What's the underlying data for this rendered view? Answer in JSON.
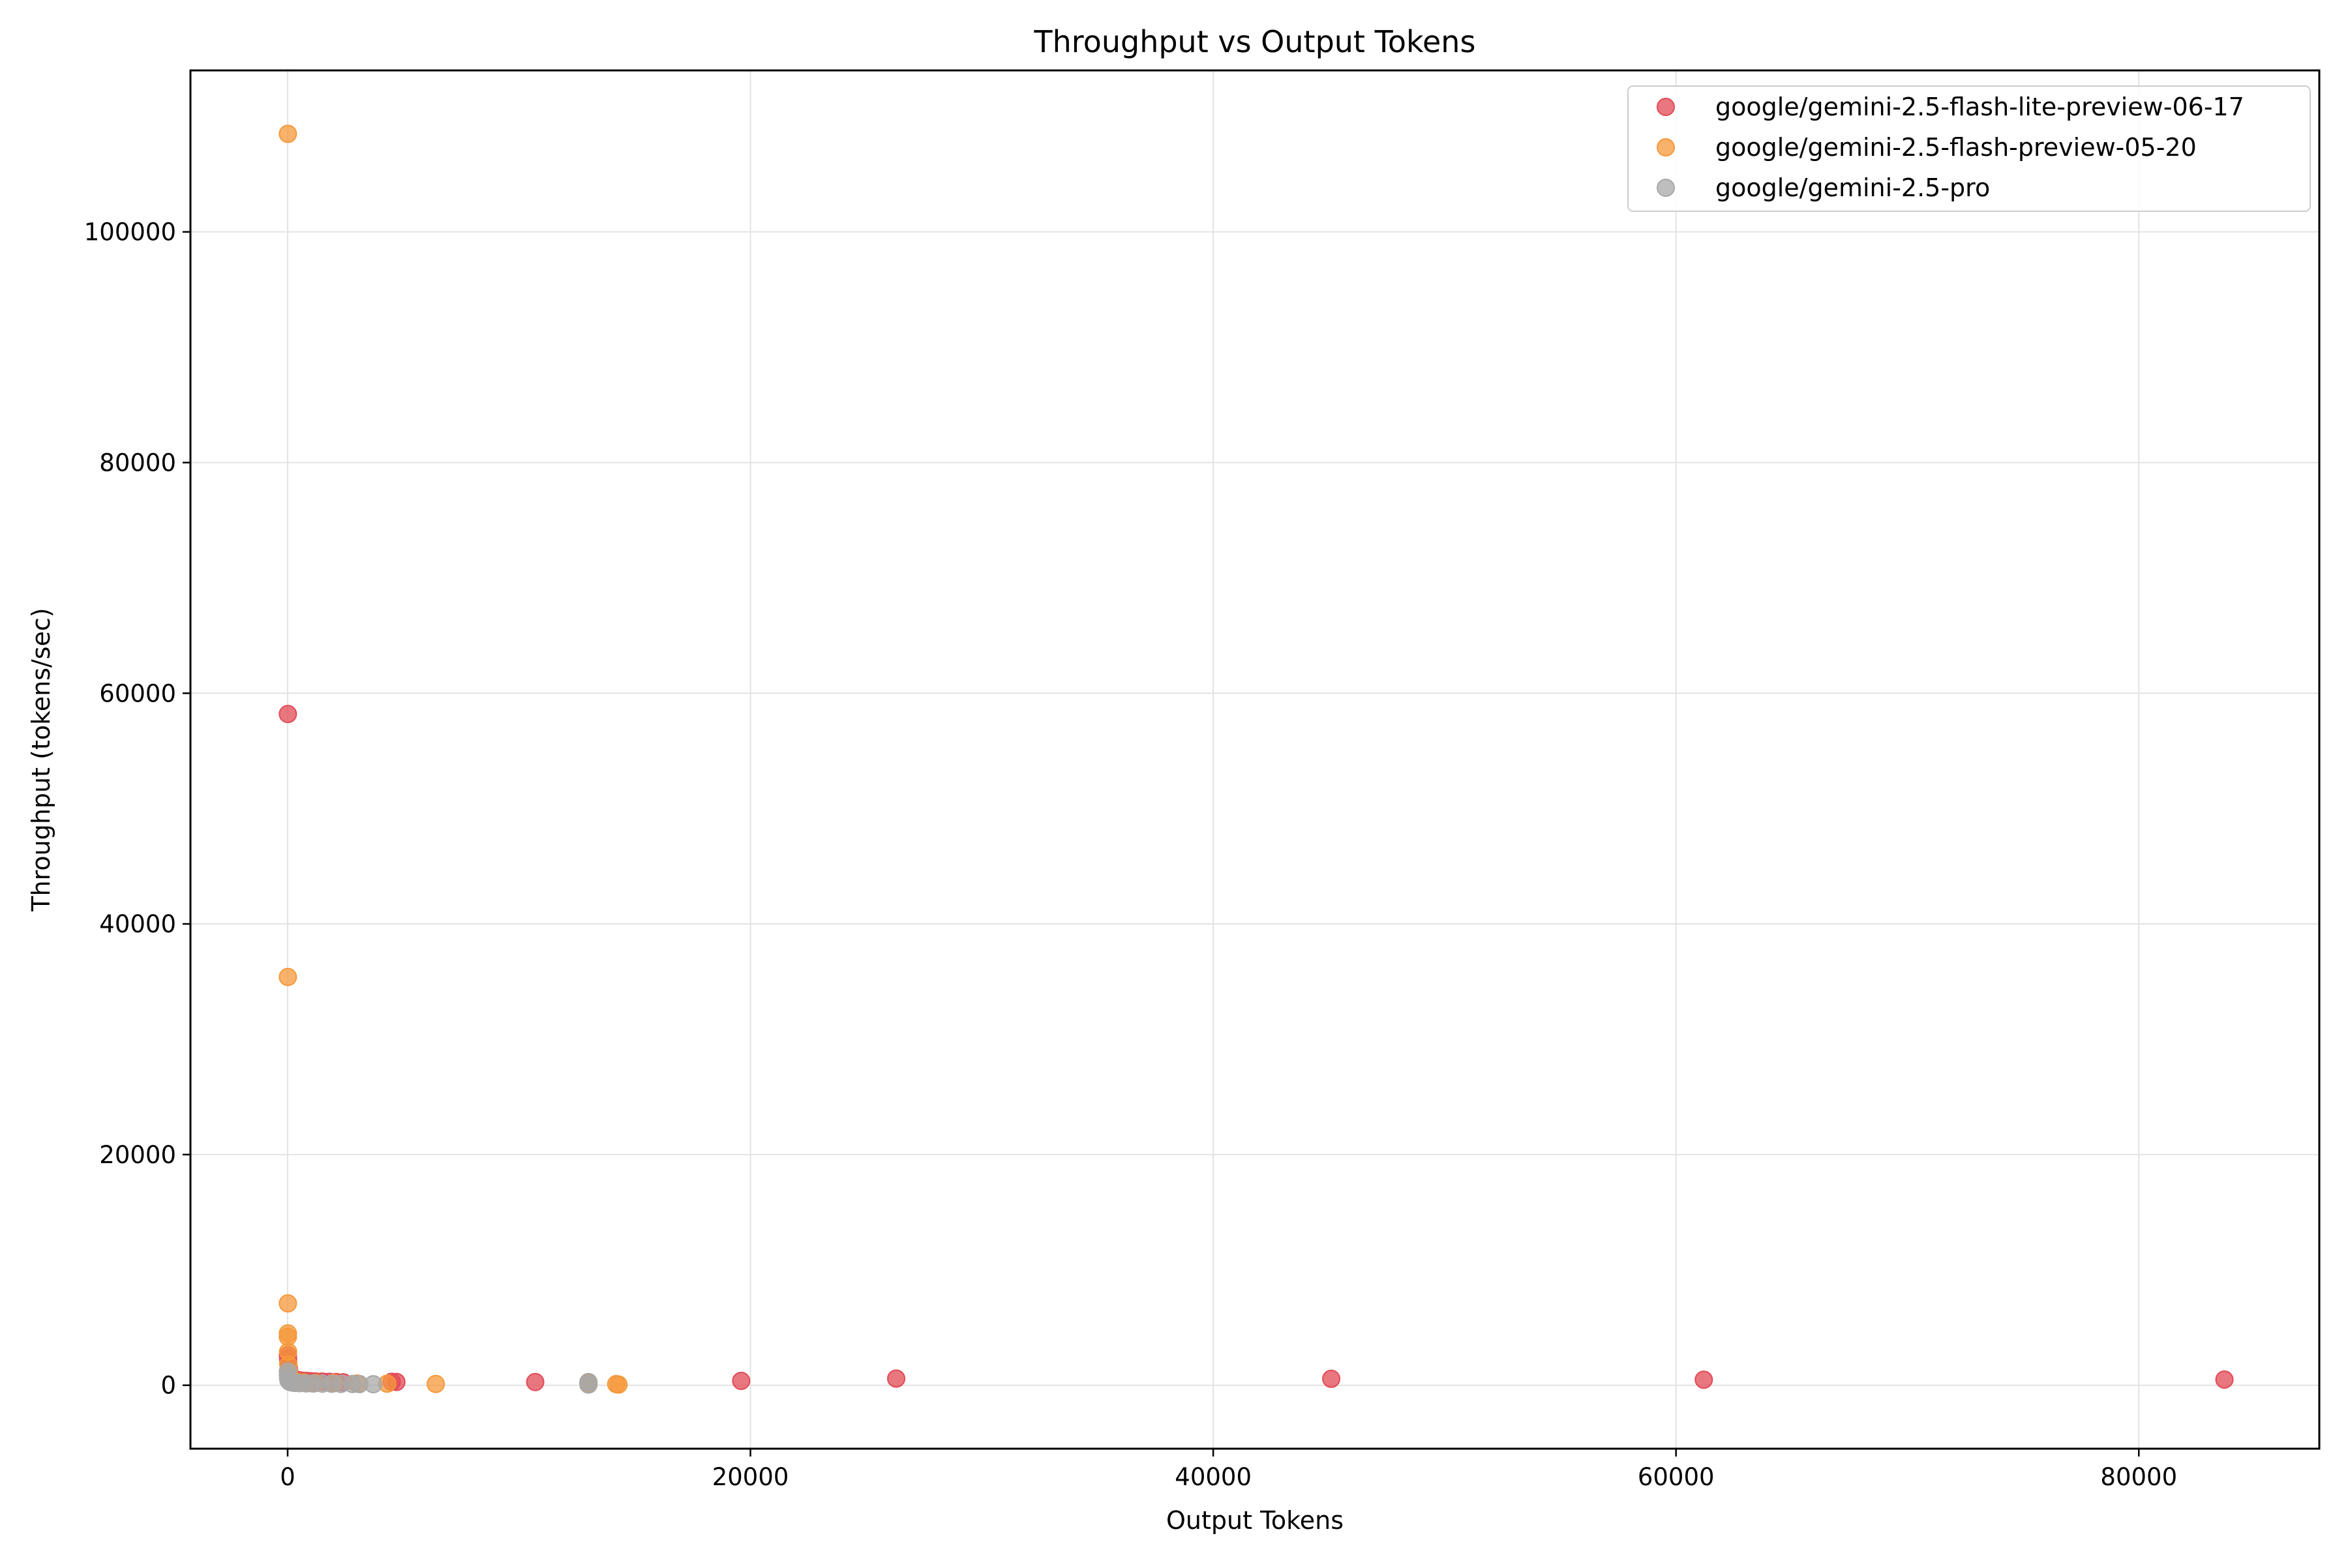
{
  "chart_data": {
    "type": "scatter",
    "title": "Throughput vs Output Tokens",
    "xlabel": "Output Tokens",
    "ylabel": "Throughput (tokens/sec)",
    "xlim": [
      -4200,
      87800
    ],
    "ylim": [
      -5500,
      114000
    ],
    "x_ticks": [
      0,
      20000,
      40000,
      60000,
      80000
    ],
    "y_ticks": [
      0,
      20000,
      40000,
      60000,
      80000,
      100000
    ],
    "grid": true,
    "legend_position": "top-right",
    "series": [
      {
        "name": "google/gemini-2.5-flash-lite-preview-06-17",
        "color": "#e24a55",
        "points": [
          [
            10,
            58200
          ],
          [
            10,
            2600
          ],
          [
            20,
            2300
          ],
          [
            30,
            1900
          ],
          [
            50,
            1500
          ],
          [
            80,
            1100
          ],
          [
            120,
            800
          ],
          [
            200,
            600
          ],
          [
            300,
            500
          ],
          [
            450,
            450
          ],
          [
            600,
            400
          ],
          [
            800,
            380
          ],
          [
            1000,
            350
          ],
          [
            1200,
            330
          ],
          [
            1500,
            320
          ],
          [
            1800,
            300
          ],
          [
            2100,
            280
          ],
          [
            2400,
            260
          ],
          [
            4500,
            300
          ],
          [
            4700,
            290
          ],
          [
            10700,
            280
          ],
          [
            13000,
            200
          ],
          [
            19600,
            380
          ],
          [
            26300,
            580
          ],
          [
            45100,
            560
          ],
          [
            61200,
            480
          ],
          [
            83700,
            490
          ]
        ]
      },
      {
        "name": "google/gemini-2.5-flash-preview-05-20",
        "color": "#f5983a",
        "points": [
          [
            10,
            108500
          ],
          [
            10,
            35400
          ],
          [
            10,
            7100
          ],
          [
            10,
            4500
          ],
          [
            10,
            4200
          ],
          [
            20,
            2900
          ],
          [
            30,
            1800
          ],
          [
            50,
            1200
          ],
          [
            100,
            700
          ],
          [
            200,
            450
          ],
          [
            400,
            300
          ],
          [
            700,
            250
          ],
          [
            1200,
            200
          ],
          [
            2000,
            180
          ],
          [
            3000,
            150
          ],
          [
            4300,
            140
          ],
          [
            6400,
            110
          ],
          [
            13000,
            150
          ],
          [
            14200,
            100
          ],
          [
            14300,
            60
          ]
        ]
      },
      {
        "name": "google/gemini-2.5-pro",
        "color": "#a8a8a8",
        "points": [
          [
            10,
            1200
          ],
          [
            10,
            900
          ],
          [
            20,
            600
          ],
          [
            40,
            400
          ],
          [
            80,
            300
          ],
          [
            150,
            250
          ],
          [
            300,
            200
          ],
          [
            500,
            180
          ],
          [
            800,
            160
          ],
          [
            1100,
            150
          ],
          [
            1500,
            140
          ],
          [
            1900,
            130
          ],
          [
            2300,
            120
          ],
          [
            2800,
            110
          ],
          [
            3100,
            100
          ],
          [
            3700,
            90
          ],
          [
            13000,
            280
          ],
          [
            13000,
            60
          ]
        ]
      }
    ]
  }
}
